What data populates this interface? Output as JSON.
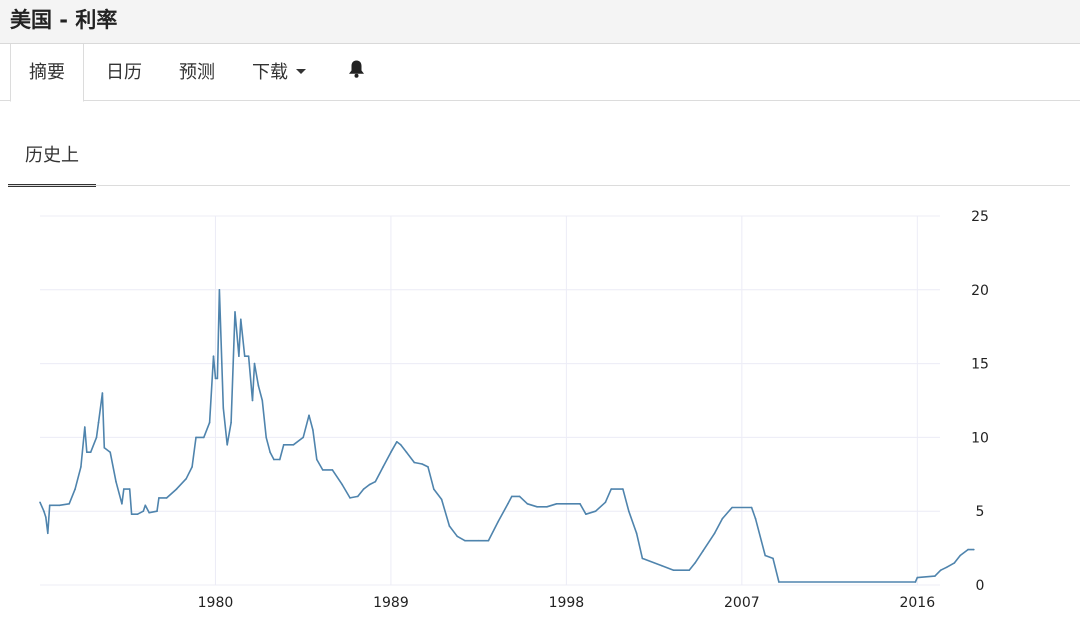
{
  "header": {
    "title": "美国 - 利率"
  },
  "tabs": [
    {
      "label": "摘要",
      "active": true
    },
    {
      "label": "日历",
      "active": false
    },
    {
      "label": "预测",
      "active": false
    },
    {
      "label": "下载",
      "active": false
    }
  ],
  "bell_icon": "bell-icon",
  "subtabs": [
    {
      "label": "历史上",
      "active": true
    }
  ],
  "colors": {
    "line": "#4f84ad",
    "grid": "#ececf6"
  },
  "chart_data": {
    "type": "line",
    "title": "",
    "xlabel": "",
    "ylabel": "",
    "xlim": [
      1971.0,
      2018.6
    ],
    "ylim": [
      0,
      25
    ],
    "x_ticks": [
      1980,
      1989,
      1998,
      2007,
      2016
    ],
    "x_tick_labels": [
      "1980",
      "1989",
      "1998",
      "2007",
      "2016"
    ],
    "y_ticks": [
      0,
      5,
      10,
      15,
      20,
      25
    ],
    "y_tick_labels": [
      "0",
      "5",
      "10",
      "15",
      "20",
      "25"
    ],
    "y_axis_side": "right",
    "grid": true,
    "legend": "none",
    "series": [
      {
        "values": [
          [
            1971.0,
            5.6
          ],
          [
            1971.2,
            5.0
          ],
          [
            1971.3,
            4.6
          ],
          [
            1971.4,
            3.5
          ],
          [
            1971.5,
            5.4
          ],
          [
            1972.0,
            5.4
          ],
          [
            1972.5,
            5.5
          ],
          [
            1972.8,
            6.5
          ],
          [
            1973.1,
            8.0
          ],
          [
            1973.3,
            10.7
          ],
          [
            1973.4,
            9.0
          ],
          [
            1973.6,
            9.0
          ],
          [
            1973.9,
            10.0
          ],
          [
            1974.0,
            11.0
          ],
          [
            1974.2,
            13.0
          ],
          [
            1974.3,
            9.3
          ],
          [
            1974.6,
            9.0
          ],
          [
            1974.9,
            7.0
          ],
          [
            1975.2,
            5.5
          ],
          [
            1975.3,
            6.5
          ],
          [
            1975.6,
            6.5
          ],
          [
            1975.7,
            4.8
          ],
          [
            1976.0,
            4.8
          ],
          [
            1976.3,
            5.0
          ],
          [
            1976.4,
            5.4
          ],
          [
            1976.6,
            4.9
          ],
          [
            1977.0,
            5.0
          ],
          [
            1977.1,
            5.9
          ],
          [
            1977.5,
            5.9
          ],
          [
            1978.0,
            6.5
          ],
          [
            1978.5,
            7.2
          ],
          [
            1978.8,
            8.0
          ],
          [
            1979.0,
            10.0
          ],
          [
            1979.4,
            10.0
          ],
          [
            1979.7,
            11.0
          ],
          [
            1979.9,
            15.5
          ],
          [
            1980.0,
            14.0
          ],
          [
            1980.1,
            14.0
          ],
          [
            1980.2,
            20.0
          ],
          [
            1980.4,
            12.0
          ],
          [
            1980.6,
            9.5
          ],
          [
            1980.8,
            11.0
          ],
          [
            1981.0,
            18.5
          ],
          [
            1981.2,
            15.5
          ],
          [
            1981.3,
            18.0
          ],
          [
            1981.5,
            15.5
          ],
          [
            1981.7,
            15.5
          ],
          [
            1981.9,
            12.5
          ],
          [
            1982.0,
            15.0
          ],
          [
            1982.2,
            13.5
          ],
          [
            1982.4,
            12.5
          ],
          [
            1982.6,
            10.0
          ],
          [
            1982.8,
            9.0
          ],
          [
            1983.0,
            8.5
          ],
          [
            1983.3,
            8.5
          ],
          [
            1983.5,
            9.5
          ],
          [
            1984.0,
            9.5
          ],
          [
            1984.5,
            10.0
          ],
          [
            1984.8,
            11.5
          ],
          [
            1985.0,
            10.5
          ],
          [
            1985.2,
            8.5
          ],
          [
            1985.5,
            7.8
          ],
          [
            1986.0,
            7.8
          ],
          [
            1986.5,
            6.8
          ],
          [
            1986.9,
            5.9
          ],
          [
            1987.3,
            6.0
          ],
          [
            1987.6,
            6.5
          ],
          [
            1987.9,
            6.8
          ],
          [
            1988.2,
            7.0
          ],
          [
            1988.6,
            8.0
          ],
          [
            1989.0,
            9.0
          ],
          [
            1989.3,
            9.7
          ],
          [
            1989.5,
            9.5
          ],
          [
            1989.8,
            9.0
          ],
          [
            1990.2,
            8.3
          ],
          [
            1990.6,
            8.2
          ],
          [
            1990.9,
            8.0
          ],
          [
            1991.2,
            6.5
          ],
          [
            1991.6,
            5.8
          ],
          [
            1992.0,
            4.0
          ],
          [
            1992.4,
            3.3
          ],
          [
            1992.8,
            3.0
          ],
          [
            1993.5,
            3.0
          ],
          [
            1994.0,
            3.0
          ],
          [
            1994.5,
            4.3
          ],
          [
            1995.0,
            5.5
          ],
          [
            1995.2,
            6.0
          ],
          [
            1995.6,
            6.0
          ],
          [
            1996.0,
            5.5
          ],
          [
            1996.5,
            5.3
          ],
          [
            1997.0,
            5.3
          ],
          [
            1997.5,
            5.5
          ],
          [
            1998.0,
            5.5
          ],
          [
            1998.7,
            5.5
          ],
          [
            1999.0,
            4.8
          ],
          [
            1999.5,
            5.0
          ],
          [
            2000.0,
            5.6
          ],
          [
            2000.3,
            6.5
          ],
          [
            2000.9,
            6.5
          ],
          [
            2001.2,
            5.0
          ],
          [
            2001.6,
            3.5
          ],
          [
            2001.9,
            1.8
          ],
          [
            2002.9,
            1.3
          ],
          [
            2003.5,
            1.0
          ],
          [
            2004.3,
            1.0
          ],
          [
            2004.6,
            1.5
          ],
          [
            2005.0,
            2.3
          ],
          [
            2005.6,
            3.5
          ],
          [
            2006.0,
            4.5
          ],
          [
            2006.5,
            5.25
          ],
          [
            2007.5,
            5.25
          ],
          [
            2007.7,
            4.5
          ],
          [
            2008.0,
            3.0
          ],
          [
            2008.2,
            2.0
          ],
          [
            2008.6,
            1.8
          ],
          [
            2008.9,
            0.2
          ],
          [
            2015.9,
            0.2
          ],
          [
            2016.0,
            0.5
          ],
          [
            2016.9,
            0.6
          ],
          [
            2017.2,
            1.0
          ],
          [
            2017.5,
            1.2
          ],
          [
            2017.9,
            1.5
          ],
          [
            2018.2,
            2.0
          ],
          [
            2018.6,
            2.4
          ],
          [
            2018.9,
            2.4
          ]
        ]
      }
    ]
  }
}
